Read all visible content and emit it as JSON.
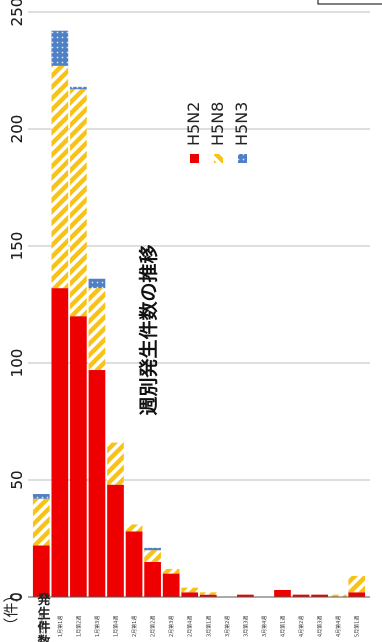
{
  "chart_data": {
    "type": "bar",
    "stacked": true,
    "orientation": "horizontal",
    "title": "週別発生件数の推移",
    "unit_label": "（件）",
    "ylabel": "発生件数",
    "ylim": [
      0,
      250
    ],
    "ticks": [
      0,
      50,
      100,
      150,
      200,
      250
    ],
    "grid": true,
    "legend_position": "center",
    "categories": [
      "12月第4週",
      "1月第1週",
      "1月第2週",
      "1月第3週",
      "1月第4週",
      "2月第1週",
      "2月第2週",
      "2月第3週",
      "2月第4週",
      "3月第1週",
      "3月第2週",
      "3月第3週",
      "3月第4週",
      "4月第1週",
      "4月第2週",
      "4月第3週",
      "4月第4週",
      "5月第1週"
    ],
    "series": [
      {
        "name": "H5N2",
        "color": "#ee0000",
        "pattern": "solid",
        "values": [
          22,
          132,
          120,
          97,
          48,
          28,
          15,
          10,
          2,
          1,
          0,
          1,
          0,
          3,
          1,
          1,
          0,
          2
        ]
      },
      {
        "name": "H5N8",
        "color": "#f7c319",
        "pattern": "diagonal-stripes",
        "values": [
          20,
          95,
          97,
          35,
          18,
          3,
          5,
          2,
          2,
          1,
          0,
          0,
          0,
          0,
          0,
          0,
          1,
          7
        ]
      },
      {
        "name": "H5N3",
        "color": "#4f7fc4",
        "pattern": "dots",
        "values": [
          2,
          15,
          1,
          4,
          0,
          0,
          1,
          0,
          0,
          0,
          0,
          0,
          0,
          0,
          0,
          0,
          0,
          0
        ]
      }
    ]
  }
}
